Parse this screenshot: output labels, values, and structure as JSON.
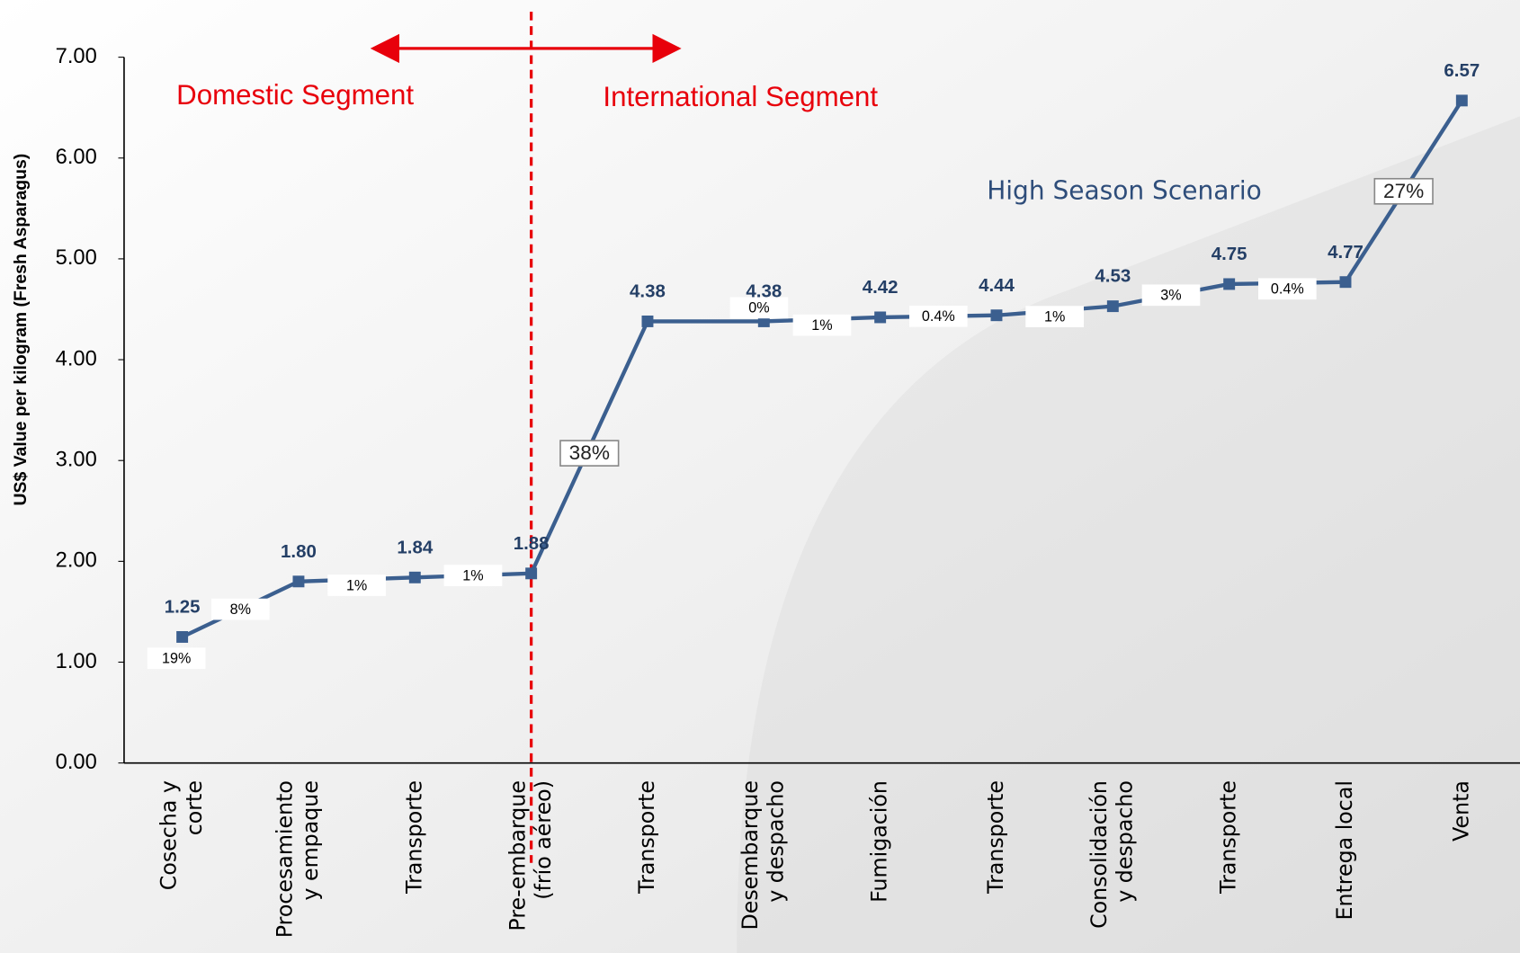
{
  "chart_data": {
    "type": "line",
    "y_label": "US$ Value per kilogram (Fresh Asparagus)",
    "annotations": [
      "Domestic Segment",
      "International Segment",
      "High Season Scenario"
    ],
    "categories": [
      "Cosecha y\ncorte",
      "Procesamiento\ny empaque",
      "Transporte",
      "Pre-embarque\n(frío aéreo)",
      "Transporte",
      "Desembarque\ny despacho",
      "Fumigación",
      "Transporte",
      "Consolidación\ny despacho",
      "Transporte",
      "Entrega local",
      "Venta"
    ],
    "series": [
      {
        "color": "#3b5f8f",
        "values": [
          1.25,
          1.8,
          1.84,
          1.88,
          4.38,
          4.38,
          4.42,
          4.44,
          4.53,
          4.75,
          4.77,
          6.57
        ],
        "value_labels": [
          "1.25",
          "1.80",
          "1.84",
          "1.88",
          "4.38",
          "4.38",
          "4.42",
          "4.44",
          "4.53",
          "4.75",
          "4.77",
          "6.57"
        ]
      }
    ],
    "shares": {
      "values": [
        19,
        8,
        1,
        1,
        38,
        0,
        1,
        0.4,
        1,
        3,
        0.4,
        27
      ],
      "value_labels": [
        "19%",
        "8%",
        "1%",
        "1%",
        "38%",
        "0%",
        "1%",
        "0.4%",
        "1%",
        "3%",
        "0.4%",
        "27%"
      ]
    },
    "ylim": [
      0,
      7
    ],
    "yticks": [
      {
        "value": 0,
        "label": "0.00"
      },
      {
        "value": 1,
        "label": "1.00"
      },
      {
        "value": 2,
        "label": "2.00"
      },
      {
        "value": 3,
        "label": "3.00"
      },
      {
        "value": 4,
        "label": "4.00"
      },
      {
        "value": 5,
        "label": "5.00"
      },
      {
        "value": 6,
        "label": "6.00"
      },
      {
        "value": 7,
        "label": "7.00"
      }
    ],
    "divider_color": "#e8000b"
  }
}
